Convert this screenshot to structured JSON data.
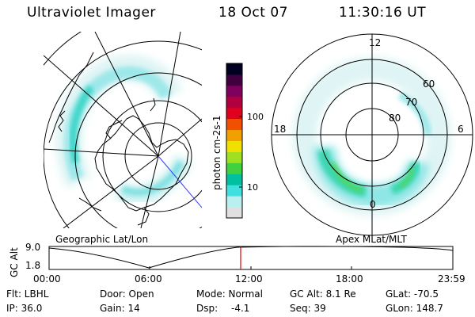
{
  "header": {
    "instrument": "Ultraviolet Imager",
    "date": "18 Oct 07",
    "time": "11:30:16 UT"
  },
  "panels": {
    "left_caption": "Geographic Lat/Lon",
    "right_caption": "Apex MLat/MLT"
  },
  "colorbar": {
    "unit_label": "photon cm-2s-1",
    "ticks": [
      "100",
      "10"
    ],
    "colors": [
      "#e0e0e0",
      "#b8f0f0",
      "#40e0e0",
      "#00c0a0",
      "#40d040",
      "#a0e020",
      "#f0e000",
      "#f0a000",
      "#f05000",
      "#e00020",
      "#b00040",
      "#800060",
      "#400040",
      "#000020"
    ]
  },
  "polar_plot": {
    "mlt_labels": [
      "12",
      "18",
      "6",
      "0"
    ],
    "lat_labels": [
      "60",
      "70",
      "80"
    ]
  },
  "altitude_strip": {
    "axis_label": "GC Alt",
    "y_ticks": [
      "9.0",
      "1.8"
    ],
    "x_ticks": [
      "00:00",
      "06:00",
      "12:00",
      "18:00",
      "23:59"
    ],
    "current_time_color": "#e00000"
  },
  "info": {
    "filter": "Flt: LBHL",
    "door": "Door: Open",
    "mode": "Mode: Normal",
    "gc_alt": "GC Alt: 8.1 Re",
    "glat": "GLat: -70.5",
    "ip": "IP: 36.0",
    "gain": "Gain: 14",
    "dsp_label": "Dsp:",
    "dsp_value": "-4.1",
    "seq": "Seq: 39",
    "glon": "GLon: 148.7"
  }
}
